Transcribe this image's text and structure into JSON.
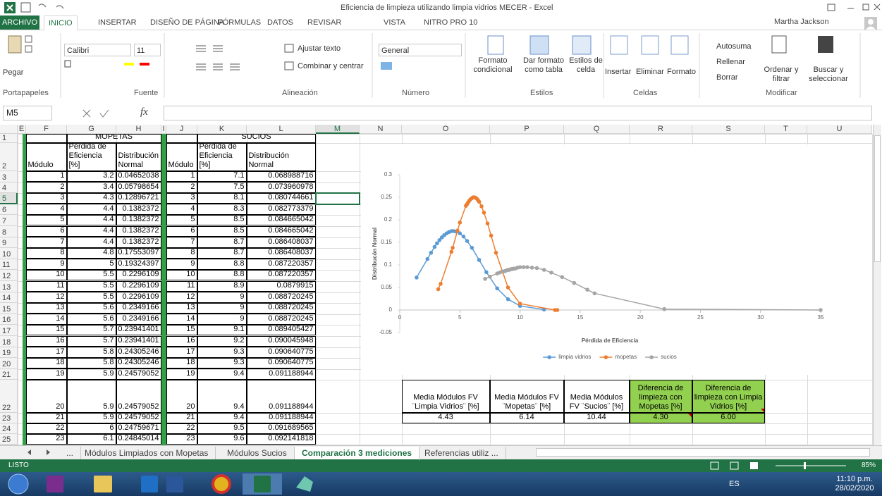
{
  "window": {
    "title": "Eficiencia de limpieza utilizando limpia vidrios MECER - Excel",
    "user": "Martha Jackson"
  },
  "ribbon": {
    "tabs": [
      "ARCHIVO",
      "INICIO",
      "INSERTAR",
      "DISEÑO DE PÁGINA",
      "FÓRMULAS",
      "DATOS",
      "REVISAR",
      "VISTA",
      "NITRO PRO 10"
    ],
    "groups": [
      {
        "label": "Portapapeles",
        "items": [
          "Pegar"
        ]
      },
      {
        "label": "Fuente",
        "items": [
          "Calibri",
          "11"
        ]
      },
      {
        "label": "Alineación",
        "items": [
          "Ajustar texto",
          "Combinar y centrar"
        ]
      },
      {
        "label": "Número",
        "items": [
          "General"
        ]
      },
      {
        "label": "Estilos",
        "items": [
          "Formato condicional",
          "Dar formato como tabla",
          "Estilos de celda"
        ]
      },
      {
        "label": "Celdas",
        "items": [
          "Insertar",
          "Eliminar",
          "Formato"
        ]
      },
      {
        "label": "Modificar",
        "items": [
          "Autosuma",
          "Rellenar",
          "Borrar",
          "Ordenar y filtrar",
          "Buscar y seleccionar"
        ]
      }
    ]
  },
  "formula_bar": {
    "name_box": "M5",
    "function_label": "fx"
  },
  "sheet": {
    "columns": [
      "E",
      "F",
      "G",
      "H",
      "I",
      "J",
      "K",
      "L",
      "M",
      "N",
      "O",
      "P",
      "Q",
      "R",
      "S",
      "T",
      "U"
    ],
    "rows": [
      1,
      2,
      3,
      4,
      5,
      6,
      7,
      8,
      9,
      10,
      11,
      12,
      13,
      14,
      15,
      16,
      17,
      18,
      19,
      20,
      21,
      22,
      23,
      24,
      25
    ]
  },
  "mopetas_table": {
    "title": "MOPETAS",
    "headers": [
      "Módulo",
      "Pérdida de Eficiencia [%]",
      "Distribución Normal"
    ],
    "rows": [
      [
        1,
        3.2,
        0.04652038
      ],
      [
        2,
        3.4,
        0.05798654
      ],
      [
        3,
        4.3,
        0.12896721
      ],
      [
        4,
        4.4,
        0.1382372
      ],
      [
        5,
        4.4,
        0.1382372
      ],
      [
        6,
        4.4,
        0.1382372
      ],
      [
        7,
        4.4,
        0.1382372
      ],
      [
        8,
        4.8,
        0.17553097
      ],
      [
        9,
        5,
        0.19324397
      ],
      [
        10,
        5.5,
        0.2296109
      ],
      [
        11,
        5.5,
        0.2296109
      ],
      [
        12,
        5.5,
        0.2296109
      ],
      [
        13,
        5.6,
        0.2349166
      ],
      [
        14,
        5.6,
        0.2349166
      ],
      [
        15,
        5.7,
        0.23941401
      ],
      [
        16,
        5.7,
        0.23941401
      ],
      [
        17,
        5.8,
        0.24305246
      ],
      [
        18,
        5.8,
        0.24305246
      ],
      [
        19,
        5.9,
        0.24579052
      ],
      [
        20,
        5.9,
        0.24579052
      ],
      [
        21,
        5.9,
        0.24579052
      ],
      [
        22,
        6,
        0.24759671
      ],
      [
        23,
        6.1,
        0.24845014
      ]
    ]
  },
  "sucios_table": {
    "title": "SUCIOS",
    "headers": [
      "Módulo",
      "Pérdida de Eficiencia [%]",
      "Distribución Normal"
    ],
    "rows": [
      [
        1,
        7.1,
        0.068988716
      ],
      [
        2,
        7.5,
        0.073960978
      ],
      [
        3,
        8.1,
        0.080744661
      ],
      [
        4,
        8.3,
        0.082773379
      ],
      [
        5,
        8.5,
        0.084665042
      ],
      [
        6,
        8.5,
        0.084665042
      ],
      [
        7,
        8.7,
        0.086408037
      ],
      [
        8,
        8.7,
        0.086408037
      ],
      [
        9,
        8.8,
        0.087220357
      ],
      [
        10,
        8.8,
        0.087220357
      ],
      [
        11,
        8.9,
        0.0879915
      ],
      [
        12,
        9,
        0.088720245
      ],
      [
        13,
        9,
        0.088720245
      ],
      [
        14,
        9,
        0.088720245
      ],
      [
        15,
        9.1,
        0.089405427
      ],
      [
        16,
        9.2,
        0.090045948
      ],
      [
        17,
        9.3,
        0.090640775
      ],
      [
        18,
        9.3,
        0.090640775
      ],
      [
        19,
        9.4,
        0.091188944
      ],
      [
        20,
        9.4,
        0.091188944
      ],
      [
        21,
        9.4,
        0.091188944
      ],
      [
        22,
        9.5,
        0.091689565
      ],
      [
        23,
        9.6,
        0.092141818
      ]
    ]
  },
  "summary_table": {
    "headers": [
      "Media Módulos FV ¨Limpia Vidrios¨ [%]",
      "Media Módulos FV ¨Mopetas¨ [%]",
      "Media Módulos FV ¨Sucios¨ [%]",
      "Diferencia de limpieza con Mopetas [%]",
      "Diferencia de limpieza con Limpia Vidrios [%]"
    ],
    "values": [
      "4.43",
      "6.14",
      "10.44",
      "4.30",
      "6.00"
    ]
  },
  "chart_data": {
    "type": "scatter",
    "x_label": "Pérdida de Eficiencia",
    "y_label": "Distribucón Normal",
    "xlim": [
      0,
      35
    ],
    "xticks": [
      0,
      5,
      10,
      15,
      20,
      25,
      30,
      35
    ],
    "ylim": [
      -0.05,
      0.3
    ],
    "yticks": [
      -0.05,
      0,
      0.05,
      0.1,
      0.15,
      0.2,
      0.25,
      0.3
    ],
    "grid": false,
    "legend": "bottom",
    "series": [
      {
        "name": "limpia vidrios",
        "color": "#5b9bd5",
        "x": [
          1.4,
          2.3,
          2.6,
          2.9,
          3.1,
          3.3,
          3.5,
          3.7,
          3.9,
          4.1,
          4.3,
          4.5,
          4.7,
          5.0,
          5.3,
          5.6,
          6.0,
          6.6,
          7.2,
          8.1,
          9.0,
          10.0,
          12.0
        ],
        "values": [
          0.072,
          0.113,
          0.127,
          0.14,
          0.148,
          0.155,
          0.161,
          0.166,
          0.17,
          0.173,
          0.175,
          0.175,
          0.174,
          0.17,
          0.163,
          0.153,
          0.138,
          0.111,
          0.084,
          0.048,
          0.024,
          0.009,
          0.001
        ]
      },
      {
        "name": "mopetas",
        "color": "#ed7d31",
        "x": [
          3.2,
          3.4,
          4.3,
          4.4,
          4.8,
          5.0,
          5.5,
          5.6,
          5.7,
          5.8,
          5.9,
          6.0,
          6.1,
          6.2,
          6.3,
          6.4,
          6.5,
          6.6,
          6.8,
          7.0,
          7.3,
          7.6,
          8.0,
          9.0,
          10.0,
          12.9,
          13.1
        ],
        "values": [
          0.046,
          0.058,
          0.129,
          0.138,
          0.176,
          0.194,
          0.231,
          0.235,
          0.239,
          0.243,
          0.246,
          0.248,
          0.25,
          0.25,
          0.249,
          0.247,
          0.244,
          0.24,
          0.23,
          0.216,
          0.192,
          0.165,
          0.127,
          0.05,
          0.014,
          0,
          0
        ]
      },
      {
        "name": "sucios",
        "color": "#a5a5a5",
        "x": [
          7.1,
          7.5,
          8.1,
          8.3,
          8.5,
          8.7,
          8.8,
          8.9,
          9.0,
          9.1,
          9.2,
          9.3,
          9.4,
          9.5,
          9.6,
          9.8,
          10.0,
          10.3,
          10.6,
          11.0,
          11.4,
          12.0,
          12.6,
          13.5,
          14.5,
          15.6,
          16.2,
          22.0,
          35.0
        ],
        "values": [
          0.069,
          0.074,
          0.081,
          0.083,
          0.085,
          0.086,
          0.087,
          0.088,
          0.089,
          0.089,
          0.09,
          0.091,
          0.091,
          0.092,
          0.092,
          0.094,
          0.095,
          0.095,
          0.095,
          0.094,
          0.093,
          0.089,
          0.083,
          0.073,
          0.06,
          0.045,
          0.037,
          0.002,
          0
        ]
      }
    ]
  },
  "sheet_tabs": [
    "...",
    "Módulos Limpiados con Mopetas",
    "Módulos Sucios",
    "Comparación 3 mediciones",
    "Referencias utiliz ..."
  ],
  "active_tab_index": 3,
  "status": {
    "mode": "LISTO",
    "zoom": "85%"
  },
  "taskbar": {
    "language": "ES",
    "time": "11:10 p.m.",
    "date": "28/02/2020"
  }
}
